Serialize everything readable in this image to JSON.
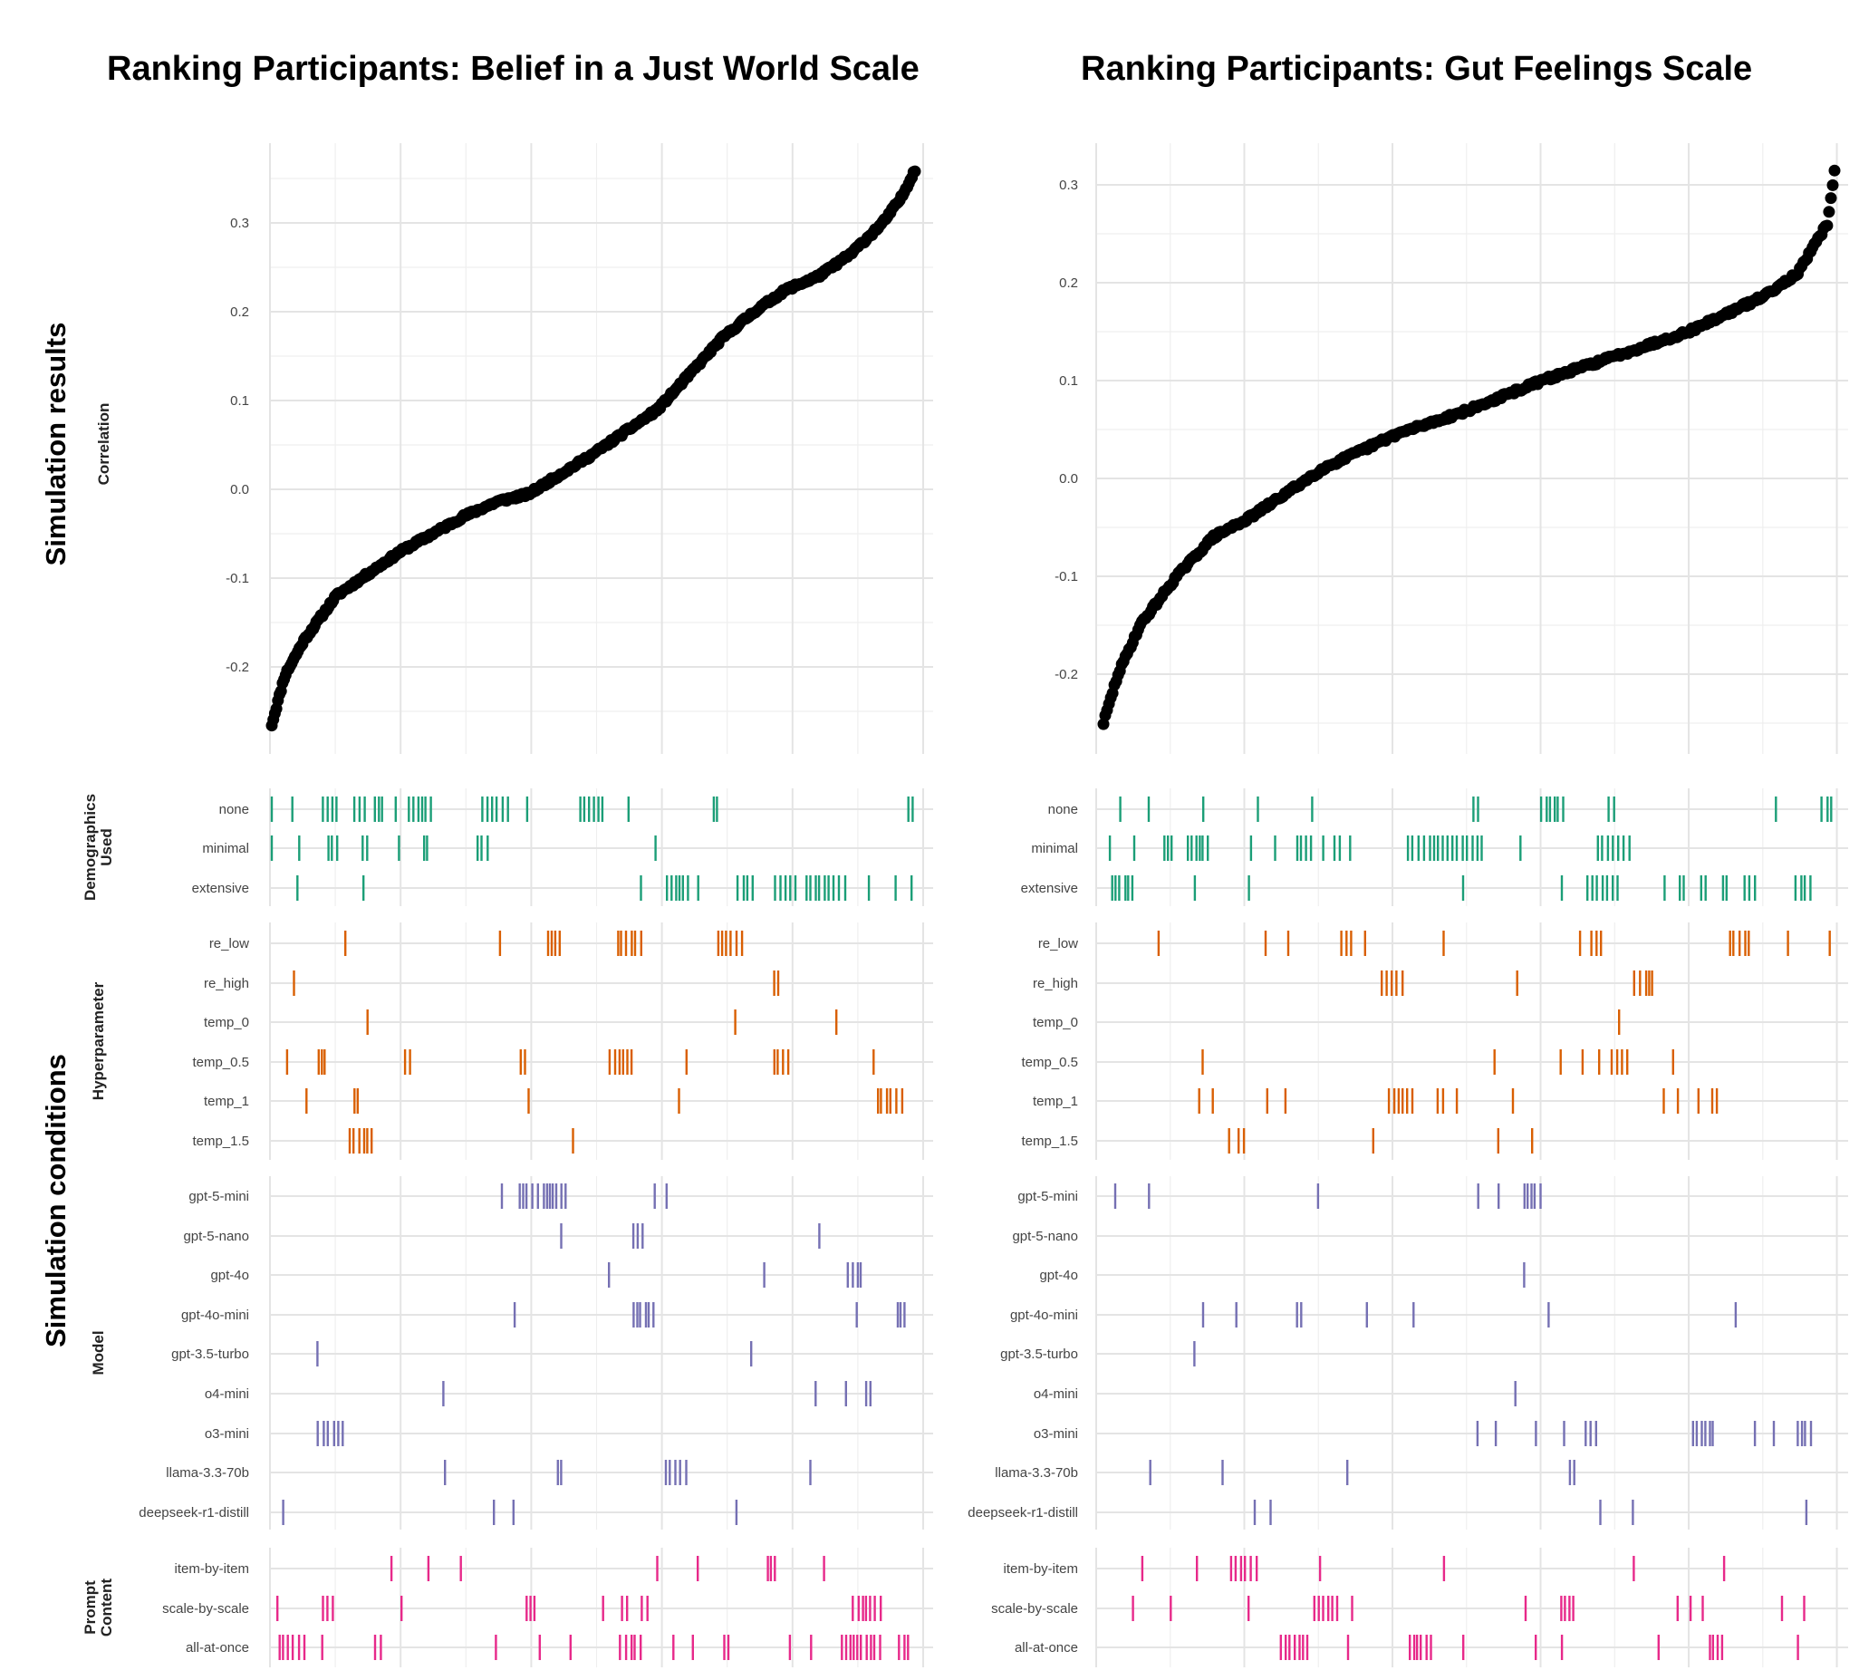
{
  "figure": {
    "left_title": "Ranking Participants: Belief in a Just World Scale",
    "right_title": "Ranking Participants: Gut Feelings Scale",
    "top_band_label": "Simulation results",
    "bottom_band_label": "Simulation conditions"
  },
  "chart_data": [
    {
      "type": "scatter",
      "title": "Ranking Participants: Belief in a Just World Scale",
      "ylabel": "Correlation",
      "xlabel": "",
      "y_ticks": [
        "0.3",
        "0.2",
        "0.1",
        "0.0",
        "-0.1",
        "-0.2"
      ],
      "y_tick_values": [
        0.3,
        0.2,
        0.1,
        0.0,
        -0.1,
        -0.2
      ],
      "ylim": [
        -0.27,
        0.37
      ],
      "n_points": 420,
      "sorted_curve_anchors": {
        "rank_fraction": [
          0,
          0.02,
          0.05,
          0.1,
          0.2,
          0.3,
          0.35,
          0.4,
          0.5,
          0.6,
          0.65,
          0.7,
          0.75,
          0.8,
          0.85,
          0.9,
          0.95,
          0.98,
          1
        ],
        "correlation": [
          -0.265,
          -0.21,
          -0.17,
          -0.12,
          -0.07,
          -0.03,
          -0.014,
          -0.005,
          0.04,
          0.09,
          0.13,
          0.17,
          0.2,
          0.225,
          0.24,
          0.265,
          0.3,
          0.33,
          0.36
        ]
      },
      "color": "#000000"
    },
    {
      "type": "scatter",
      "title": "Ranking Participants: Gut Feelings Scale",
      "ylabel": "",
      "xlabel": "",
      "y_ticks": [
        "0.3",
        "0.2",
        "0.1",
        "0.0",
        "-0.1",
        "-0.2"
      ],
      "y_tick_values": [
        0.3,
        0.2,
        0.1,
        0.0,
        -0.1,
        -0.2
      ],
      "ylim": [
        -0.26,
        0.32
      ],
      "n_points": 400,
      "sorted_curve_anchors": {
        "rank_fraction": [
          0,
          0.02,
          0.05,
          0.1,
          0.15,
          0.2,
          0.3,
          0.4,
          0.5,
          0.6,
          0.7,
          0.8,
          0.9,
          0.95,
          0.97,
          0.99,
          1
        ],
        "correlation": [
          -0.25,
          -0.2,
          -0.15,
          -0.1,
          -0.06,
          -0.04,
          0.01,
          0.045,
          0.07,
          0.1,
          0.125,
          0.15,
          0.185,
          0.21,
          0.235,
          0.26,
          0.315
        ]
      },
      "color": "#000000"
    }
  ],
  "conditions": {
    "groups": [
      {
        "name": "Demographics Used",
        "label_lines": [
          "Demographics",
          "Used"
        ],
        "color": "#1b9e77",
        "rows": [
          "none",
          "minimal",
          "extensive"
        ]
      },
      {
        "name": "Hyperparameter",
        "label_lines": [
          "Hyperparameter"
        ],
        "color": "#d95f02",
        "rows": [
          "re_low",
          "re_high",
          "temp_0",
          "temp_0.5",
          "temp_1",
          "temp_1.5"
        ]
      },
      {
        "name": "Model",
        "label_lines": [
          "Model"
        ],
        "color": "#7570b3",
        "rows": [
          "gpt-5-mini",
          "gpt-5-nano",
          "gpt-4o",
          "gpt-4o-mini",
          "gpt-3.5-turbo",
          "o4-mini",
          "o3-mini",
          "llama-3.3-70b",
          "deepseek-r1-distill"
        ]
      },
      {
        "name": "Prompt Content",
        "label_lines": [
          "Prompt",
          "Content"
        ],
        "color": "#e7298a",
        "rows": [
          "item-by-item",
          "scale-by-scale",
          "all-at-once"
        ]
      }
    ],
    "tick_marks": "Each vertical tick marks the rank position of one simulation run in the ordered correlation plot above that uses the row's condition."
  }
}
